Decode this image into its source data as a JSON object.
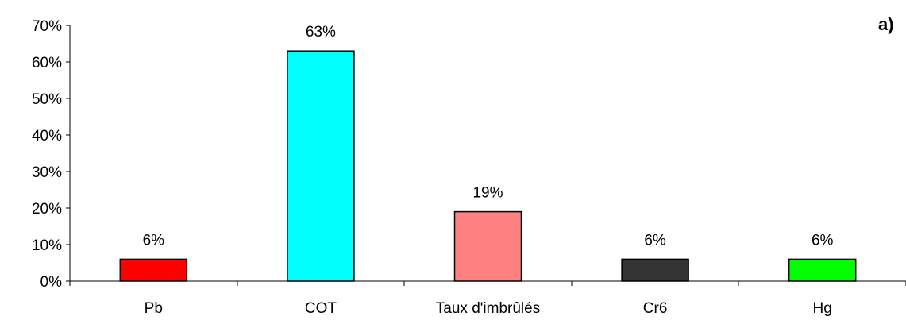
{
  "chart_data": {
    "type": "bar",
    "panel_label": "a)",
    "categories": [
      "Pb",
      "COT",
      "Taux d'imbrûlés",
      "Cr6",
      "Hg"
    ],
    "values": [
      6,
      63,
      19,
      6,
      6
    ],
    "data_labels": [
      "6%",
      "63%",
      "19%",
      "6%",
      "6%"
    ],
    "colors": [
      "#ff0000",
      "#00ffff",
      "#ff8080",
      "#333333",
      "#00ff00"
    ],
    "ylim": [
      0,
      70
    ],
    "yticks": [
      0,
      10,
      20,
      30,
      40,
      50,
      60,
      70
    ],
    "ytick_labels": [
      "0%",
      "10%",
      "20%",
      "30%",
      "40%",
      "50%",
      "60%",
      "70%"
    ],
    "grid": false,
    "title": "",
    "xlabel": "",
    "ylabel": ""
  }
}
